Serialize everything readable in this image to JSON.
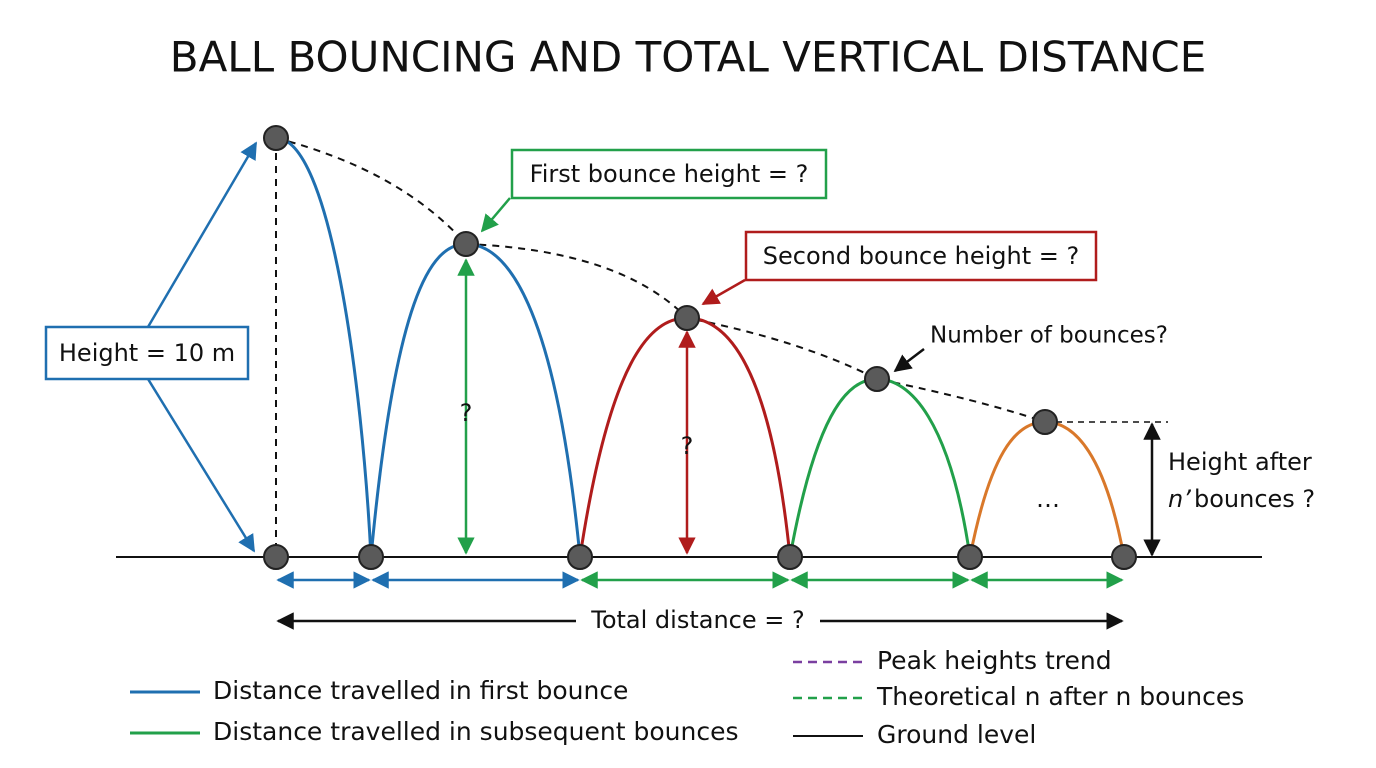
{
  "title": "BALL BOUNCING AND TOTAL VERTICAL DISTANCE",
  "labels": {
    "height": "Height = 10 m",
    "first_bounce": "First bounce height = ?",
    "second_bounce": "Second bounce height = ?",
    "number_of_bounces": "Number of bounces?",
    "first_question": "?",
    "second_question": "?",
    "ellipsis": "…",
    "height_after_line1": "Height after",
    "height_after_n": "n’",
    "height_after_line2": " bounces ?",
    "total_distance": "Total distance = ?"
  },
  "legend": {
    "left": [
      "Distance travelled in first bounce",
      "Distance travelled in subsequent bounces"
    ],
    "right": [
      "Peak heights trend",
      "Theoretical n after n bounces",
      "Ground level"
    ]
  }
}
